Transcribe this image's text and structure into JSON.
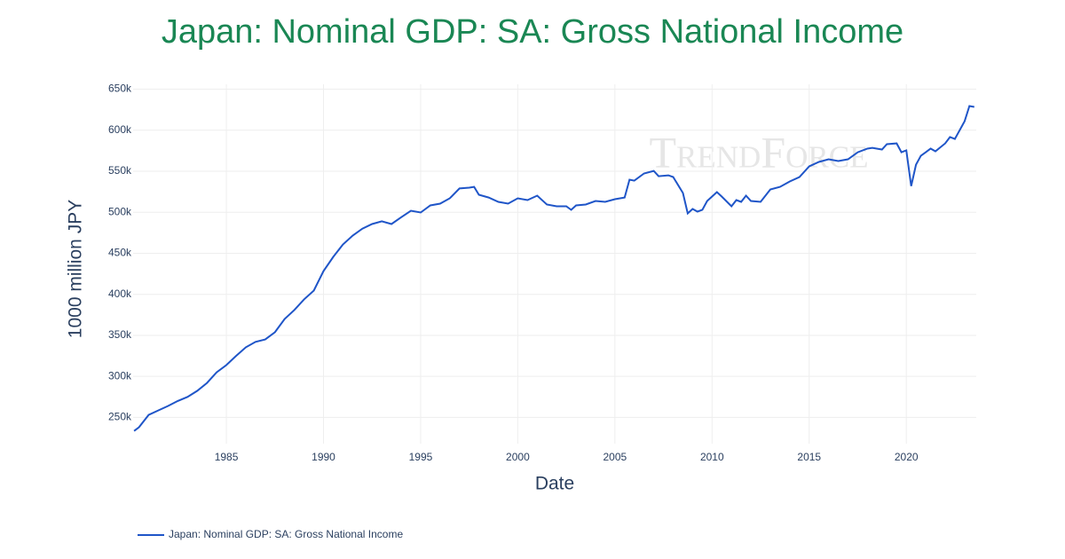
{
  "chart_data": {
    "type": "line",
    "title": "Japan: Nominal GDP: SA: Gross National Income",
    "x_label": "Date",
    "y_label": "1000 million JPY",
    "watermark": "TrendForce",
    "legend": "bottom-left",
    "grid": true,
    "xlim": [
      1980.2,
      2023.6
    ],
    "xticks": [
      1985,
      1990,
      1995,
      2000,
      2005,
      2010,
      2015,
      2020
    ],
    "ylim": [
      218000,
      656000
    ],
    "yticks": [
      {
        "value": 250000,
        "label": "250k"
      },
      {
        "value": 300000,
        "label": "300k"
      },
      {
        "value": 350000,
        "label": "350k"
      },
      {
        "value": 400000,
        "label": "400k"
      },
      {
        "value": 450000,
        "label": "450k"
      },
      {
        "value": 500000,
        "label": "500k"
      },
      {
        "value": 550000,
        "label": "550k"
      },
      {
        "value": 600000,
        "label": "600k"
      },
      {
        "value": 650000,
        "label": "650k"
      }
    ],
    "x": [
      1980.25,
      1980.5,
      1981,
      1981.5,
      1982,
      1982.5,
      1983,
      1983.5,
      1984,
      1984.5,
      1985,
      1985.5,
      1986,
      1986.5,
      1987,
      1987.5,
      1988,
      1988.5,
      1989,
      1989.5,
      1990,
      1990.5,
      1991,
      1991.5,
      1992,
      1992.5,
      1993,
      1993.5,
      1994,
      1994.5,
      1995,
      1995.5,
      1996,
      1996.5,
      1997,
      1997.5,
      1997.75,
      1998,
      1998.5,
      1999,
      1999.5,
      2000,
      2000.5,
      2001,
      2001.5,
      2002,
      2002.5,
      2002.75,
      2003,
      2003.5,
      2004,
      2004.5,
      2005,
      2005.5,
      2005.75,
      2006,
      2006.5,
      2007,
      2007.25,
      2007.75,
      2008,
      2008.5,
      2008.75,
      2009,
      2009.25,
      2009.5,
      2009.75,
      2010,
      2010.25,
      2010.5,
      2011,
      2011.25,
      2011.5,
      2011.75,
      2012,
      2012.5,
      2013,
      2013.5,
      2014,
      2014.5,
      2015,
      2015.5,
      2016,
      2016.5,
      2017,
      2017.5,
      2018,
      2018.25,
      2018.75,
      2019,
      2019.5,
      2019.75,
      2020,
      2020.25,
      2020.5,
      2020.75,
      2021,
      2021.25,
      2021.5,
      2022,
      2022.25,
      2022.5,
      2023,
      2023.25,
      2023.5
    ],
    "series": [
      {
        "name": "Japan: Nominal GDP: SA: Gross National Income",
        "color": "#1f55c8",
        "values": [
          233500,
          238000,
          253000,
          258600,
          264000,
          270000,
          275000,
          282400,
          292000,
          305000,
          313800,
          325000,
          335400,
          342000,
          345000,
          353800,
          370000,
          381000,
          393800,
          404600,
          428400,
          445700,
          460800,
          471600,
          480000,
          485700,
          489000,
          485700,
          494000,
          501900,
          499700,
          508400,
          510500,
          517000,
          529000,
          530000,
          531000,
          521400,
          518000,
          512700,
          510500,
          517000,
          514900,
          520300,
          509500,
          507300,
          507300,
          503000,
          508400,
          509500,
          513800,
          512700,
          516000,
          518000,
          539700,
          538600,
          547300,
          550500,
          544000,
          545000,
          543000,
          523500,
          498600,
          504000,
          500800,
          503000,
          513800,
          519200,
          524600,
          519200,
          507300,
          514900,
          512700,
          520300,
          513800,
          512700,
          527800,
          531000,
          537600,
          543000,
          556000,
          561400,
          564600,
          562400,
          564600,
          573200,
          577600,
          578600,
          576500,
          583000,
          584000,
          573200,
          575400,
          532000,
          558000,
          568900,
          573200,
          577600,
          574300,
          584000,
          591600,
          589400,
          611000,
          629500,
          628400
        ]
      }
    ]
  }
}
